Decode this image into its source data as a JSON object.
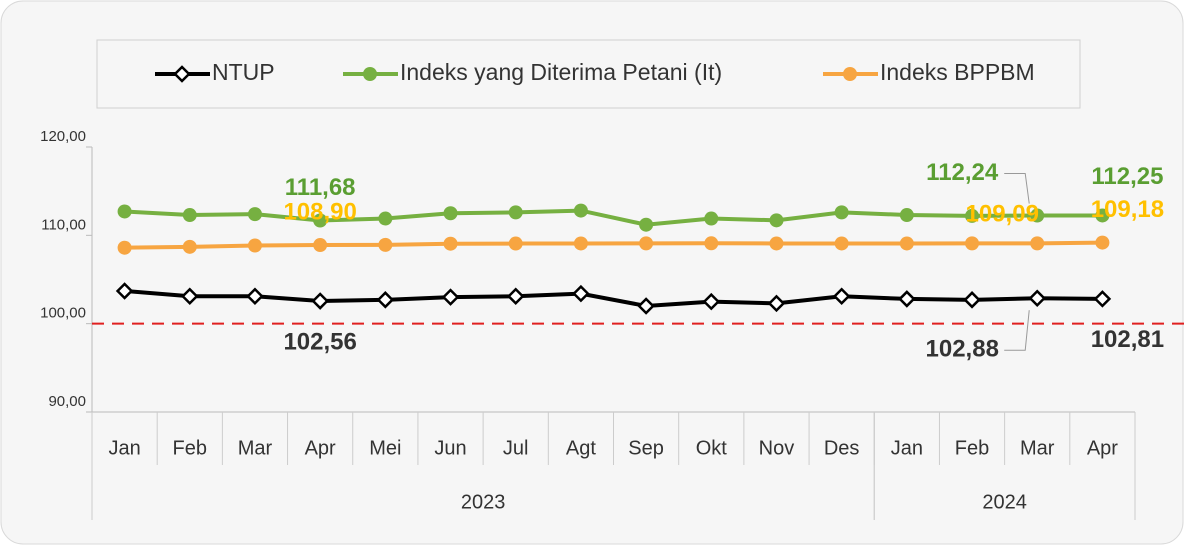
{
  "chart_data": {
    "type": "line",
    "categories": [
      "Jan",
      "Feb",
      "Mar",
      "Apr",
      "Mei",
      "Jun",
      "Jul",
      "Agt",
      "Sep",
      "Okt",
      "Nov",
      "Des",
      "Jan",
      "Feb",
      "Mar",
      "Apr"
    ],
    "groups": [
      {
        "label": "2023",
        "count": 12
      },
      {
        "label": "2024",
        "count": 4
      }
    ],
    "series": [
      {
        "name": "NTUP",
        "color": "#000000",
        "marker": "diamond",
        "label_color": "#333333",
        "values": [
          103.7,
          103.1,
          103.1,
          102.56,
          102.7,
          103.0,
          103.1,
          103.4,
          102.0,
          102.5,
          102.3,
          103.1,
          102.8,
          102.7,
          102.88,
          102.81
        ],
        "value_labels": [
          null,
          null,
          null,
          "102,56",
          null,
          null,
          null,
          null,
          null,
          null,
          null,
          null,
          null,
          null,
          "102,88",
          "102,81"
        ]
      },
      {
        "name": "Indeks yang Diterima Petani (It)",
        "color": "#76b041",
        "marker": "circle",
        "label_color": "#5a9e32",
        "values": [
          112.7,
          112.3,
          112.4,
          111.68,
          111.9,
          112.5,
          112.6,
          112.8,
          111.2,
          111.9,
          111.7,
          112.6,
          112.3,
          112.2,
          112.24,
          112.25
        ],
        "value_labels": [
          null,
          null,
          null,
          "111,68",
          null,
          null,
          null,
          null,
          null,
          null,
          null,
          null,
          null,
          null,
          "112,24",
          "112,25"
        ]
      },
      {
        "name": "Indeks BPPBM",
        "color": "#f7a541",
        "marker": "circle",
        "label_color": "#ffc000",
        "values": [
          108.6,
          108.7,
          108.85,
          108.9,
          108.92,
          109.05,
          109.07,
          109.08,
          109.09,
          109.1,
          109.08,
          109.08,
          109.08,
          109.09,
          109.09,
          109.18
        ],
        "value_labels": [
          null,
          null,
          null,
          "108,90",
          null,
          null,
          null,
          null,
          null,
          null,
          null,
          null,
          null,
          null,
          "109,09",
          "109,18"
        ]
      }
    ],
    "ylim": [
      90,
      120
    ],
    "yticks": [
      {
        "value": 90,
        "label": "90,00"
      },
      {
        "value": 100,
        "label": "100,00"
      },
      {
        "value": 110,
        "label": "110,00"
      },
      {
        "value": 120,
        "label": "120,00"
      }
    ],
    "reference_line": {
      "value": 100,
      "color": "#e02020"
    },
    "legend": "top"
  }
}
